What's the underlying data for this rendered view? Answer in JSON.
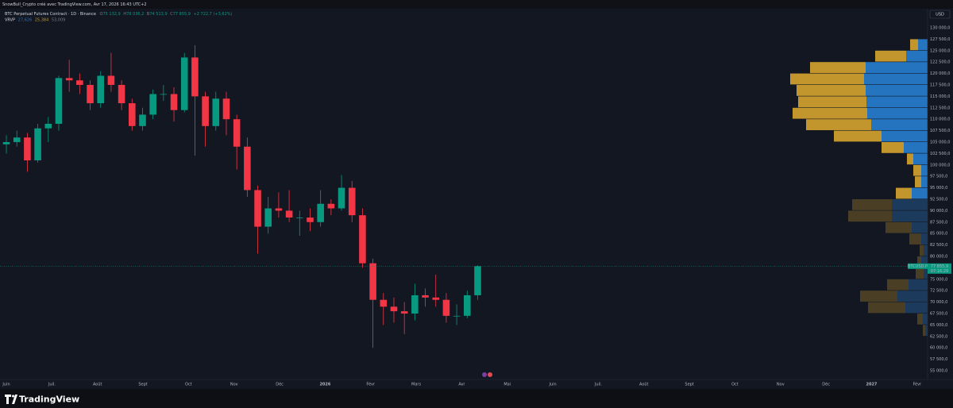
{
  "header": {
    "author_line": "SnowBull_Crypto créé avec TradingView.com, Avr 17, 2026 16:43 UTC+2",
    "symbol": "BTC Perpetual Futures Contract · 1D · Binance",
    "ohlc": [
      {
        "label": "O",
        "value": "75 132,9"
      },
      {
        "label": "H",
        "value": "78 036,2"
      },
      {
        "label": "B",
        "value": "74 513,9"
      },
      {
        "label": "C",
        "value": "77 855,9"
      }
    ],
    "change": "+2 722,7 (+3,62%)",
    "indicator": {
      "name": "VRVP",
      "up": "27,626",
      "down": "25,384",
      "total": "53,009"
    }
  },
  "chart_data": {
    "type": "candlestick",
    "currency": "USD",
    "up_color": "#089981",
    "down_color": "#f23645",
    "grid": false,
    "x": [
      0,
      0.23,
      0.46,
      0.69,
      0.92,
      1.15,
      1.38,
      1.61,
      1.84,
      2.07,
      2.3,
      2.53,
      2.76,
      2.99,
      3.22,
      3.45,
      3.68,
      3.91,
      4.14,
      4.37,
      4.6,
      4.83,
      5.06,
      5.29,
      5.52,
      5.75,
      5.98,
      6.21,
      6.44,
      6.67,
      6.9,
      7.13,
      7.36,
      7.59,
      7.82,
      8.05,
      8.28,
      8.51,
      8.74,
      8.97,
      9.2,
      9.43,
      9.66,
      9.89,
      10.12,
      10.35
    ],
    "open": [
      104500,
      105000,
      106000,
      101000,
      108000,
      109000,
      119000,
      118500,
      117500,
      113500,
      119500,
      117500,
      113500,
      108500,
      111000,
      115500,
      115500,
      112000,
      123500,
      115000,
      108500,
      114500,
      110000,
      104000,
      94500,
      86500,
      90500,
      90000,
      88500,
      88500,
      87500,
      91500,
      90500,
      95000,
      89000,
      78500,
      70500,
      69000,
      68000,
      67500,
      71500,
      71000,
      70500,
      67000,
      67000,
      71500
    ],
    "high": [
      106500,
      107500,
      107000,
      109000,
      110500,
      119500,
      123000,
      120000,
      118500,
      120500,
      124500,
      118500,
      114500,
      112500,
      116500,
      117500,
      117000,
      124500,
      126200,
      116000,
      116000,
      116000,
      111000,
      106000,
      95500,
      93000,
      94000,
      94500,
      90000,
      90500,
      94500,
      92500,
      97800,
      96500,
      90500,
      79500,
      72000,
      71000,
      70000,
      74000,
      73000,
      76000,
      72000,
      69500,
      72500,
      78036.2
    ],
    "low": [
      102500,
      104000,
      98500,
      100500,
      105000,
      107500,
      116000,
      115500,
      112000,
      112500,
      116000,
      112000,
      107500,
      107500,
      110000,
      114000,
      109500,
      111500,
      102000,
      104000,
      107500,
      106500,
      99000,
      93000,
      80600,
      85000,
      88500,
      87500,
      84500,
      85500,
      86500,
      89000,
      90000,
      87500,
      77500,
      60000,
      65000,
      65500,
      63000,
      66000,
      69000,
      69000,
      65500,
      65000,
      66500,
      70500
    ],
    "close": [
      105000,
      106000,
      101000,
      108000,
      109000,
      119000,
      118500,
      117500,
      113500,
      119500,
      117500,
      113500,
      108500,
      111000,
      115500,
      115500,
      112000,
      123500,
      115000,
      108500,
      114500,
      110000,
      104000,
      94500,
      86500,
      90500,
      90000,
      88500,
      88500,
      87500,
      91500,
      90500,
      95000,
      89000,
      78500,
      70500,
      69000,
      68000,
      67500,
      71500,
      71000,
      70500,
      67000,
      67000,
      71500,
      77855.9
    ],
    "xlim": [
      -0.14,
      20.23
    ],
    "xticks": [
      {
        "value": 0,
        "label": "Juin"
      },
      {
        "value": 1,
        "label": "Juil."
      },
      {
        "value": 2,
        "label": "Août"
      },
      {
        "value": 3,
        "label": "Sept"
      },
      {
        "value": 4,
        "label": "Oct"
      },
      {
        "value": 5,
        "label": "Nov"
      },
      {
        "value": 6,
        "label": "Déc"
      },
      {
        "value": 7,
        "label": "2026"
      },
      {
        "value": 8,
        "label": "Févr"
      },
      {
        "value": 9,
        "label": "Mars"
      },
      {
        "value": 10,
        "label": "Avr"
      },
      {
        "value": 11,
        "label": "Mai"
      },
      {
        "value": 12,
        "label": "Juin"
      },
      {
        "value": 13,
        "label": "Juil."
      },
      {
        "value": 14,
        "label": "Août"
      },
      {
        "value": 15,
        "label": "Sept"
      },
      {
        "value": 16,
        "label": "Oct"
      },
      {
        "value": 17,
        "label": "Nov"
      },
      {
        "value": 18,
        "label": "Déc"
      },
      {
        "value": 19,
        "label": "2027"
      },
      {
        "value": 20,
        "label": "Févr"
      }
    ],
    "ylim": [
      53090,
      133990
    ],
    "yticks": [
      {
        "value": 130000,
        "label": "130 000,0"
      },
      {
        "value": 127500,
        "label": "127 500,0"
      },
      {
        "value": 125000,
        "label": "125 000,0"
      },
      {
        "value": 122500,
        "label": "122 500,0"
      },
      {
        "value": 120000,
        "label": "120 000,0"
      },
      {
        "value": 117500,
        "label": "117 500,0"
      },
      {
        "value": 115000,
        "label": "115 000,0"
      },
      {
        "value": 112500,
        "label": "112 500,0"
      },
      {
        "value": 110000,
        "label": "110 000,0"
      },
      {
        "value": 107500,
        "label": "107 500,0"
      },
      {
        "value": 105000,
        "label": "105 000,0"
      },
      {
        "value": 102500,
        "label": "102 500,0"
      },
      {
        "value": 100000,
        "label": "100 000,0"
      },
      {
        "value": 97500,
        "label": "97 500,0"
      },
      {
        "value": 95000,
        "label": "95 000,0"
      },
      {
        "value": 92500,
        "label": "92 500,0"
      },
      {
        "value": 90000,
        "label": "90 000,0"
      },
      {
        "value": 87500,
        "label": "87 500,0"
      },
      {
        "value": 85000,
        "label": "85 000,0"
      },
      {
        "value": 82500,
        "label": "82 500,0"
      },
      {
        "value": 80000,
        "label": "80 000,0"
      },
      {
        "value": 75000,
        "label": "75 000,0"
      },
      {
        "value": 72500,
        "label": "72 500,0"
      },
      {
        "value": 70000,
        "label": "70 000,0"
      },
      {
        "value": 67500,
        "label": "67 500,0"
      },
      {
        "value": 65000,
        "label": "65 000,0"
      },
      {
        "value": 62500,
        "label": "62 500,0"
      },
      {
        "value": 60000,
        "label": "60 000,0"
      },
      {
        "value": 57500,
        "label": "57 500,0"
      },
      {
        "value": 55000,
        "label": "55 000,0"
      }
    ],
    "last_price": {
      "symbol": "BTCUSD.P",
      "value": 77855.9,
      "label": "77 855,9",
      "countdown": "07:16:29"
    },
    "volume_profile": [
      {
        "up_color": "#2474c0",
        "down_color": "#c2962c",
        "prices": [
          125000,
          122500,
          120000,
          117500,
          115000,
          112500,
          110000,
          107500,
          105000,
          102500,
          100000,
          97500,
          95000,
          92500
        ],
        "up": [
          12,
          27,
          78,
          80,
          78,
          77,
          76,
          71,
          58,
          30,
          18,
          8,
          8,
          20
        ],
        "down": [
          10,
          39,
          70,
          93,
          87,
          86,
          94,
          82,
          60,
          28,
          8,
          10,
          8,
          20
        ]
      },
      {
        "up_color": "#1c3a5c",
        "down_color": "#4a3f24",
        "prices": [
          90000,
          87500,
          85000,
          82500,
          80000,
          77500,
          75000,
          72500,
          70000,
          67500,
          65000,
          62500
        ],
        "up": [
          45,
          45,
          20,
          8,
          5,
          8,
          5,
          24,
          38,
          28,
          6,
          3
        ],
        "down": [
          50,
          55,
          33,
          15,
          5,
          5,
          10,
          27,
          47,
          47,
          7,
          3
        ]
      }
    ]
  },
  "footer": {
    "brand": "TradingView"
  }
}
